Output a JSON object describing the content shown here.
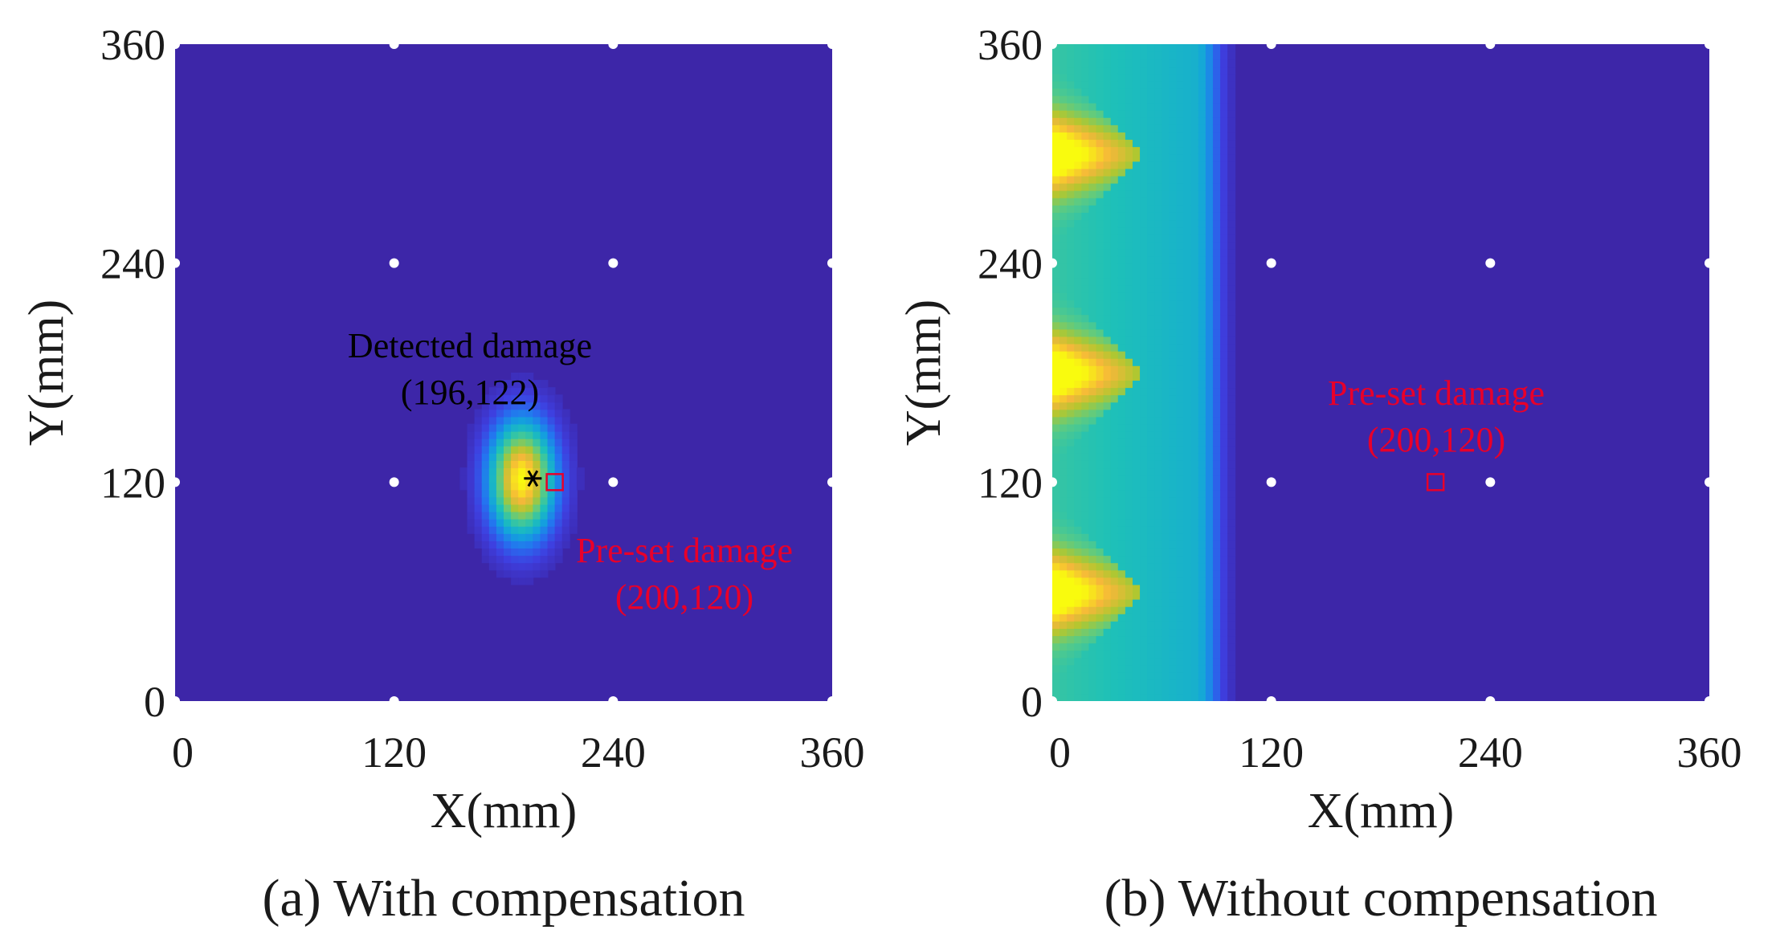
{
  "chart_data": [
    {
      "type": "heatmap",
      "caption": "(a) With compensation",
      "xlabel": "X(mm)",
      "ylabel": "Y(mm)",
      "xlim": [
        0,
        360
      ],
      "ylim": [
        0,
        360
      ],
      "xticks": [
        "0",
        "120",
        "240",
        "360"
      ],
      "yticks": [
        "0",
        "120",
        "240",
        "360"
      ],
      "sensors": [
        [
          0,
          0
        ],
        [
          120,
          0
        ],
        [
          240,
          0
        ],
        [
          360,
          0
        ],
        [
          0,
          120
        ],
        [
          120,
          120
        ],
        [
          240,
          120
        ],
        [
          360,
          120
        ],
        [
          0,
          240
        ],
        [
          120,
          240
        ],
        [
          240,
          240
        ],
        [
          360,
          240
        ],
        [
          0,
          360
        ],
        [
          120,
          360
        ],
        [
          240,
          360
        ],
        [
          360,
          360
        ]
      ],
      "hotspots": [
        {
          "x": 190,
          "y": 122,
          "sx": 18,
          "sy": 32,
          "amp": 1.0
        }
      ],
      "annotations": [
        {
          "kind": "detected",
          "lines": [
            "Detected damage",
            "(196,122)"
          ],
          "x": 196,
          "y": 122,
          "color": "#000000"
        },
        {
          "kind": "preset",
          "lines": [
            "Pre-set damage",
            "(200,120)"
          ],
          "x": 208,
          "y": 120,
          "color": "#e8002a"
        }
      ]
    },
    {
      "type": "heatmap",
      "caption": "(b) Without compensation",
      "xlabel": "X(mm)",
      "ylabel": "Y(mm)",
      "xlim": [
        0,
        360
      ],
      "ylim": [
        0,
        360
      ],
      "xticks": [
        "0",
        "120",
        "240",
        "360"
      ],
      "yticks": [
        "0",
        "120",
        "240",
        "360"
      ],
      "sensors": [
        [
          0,
          0
        ],
        [
          120,
          0
        ],
        [
          240,
          0
        ],
        [
          360,
          0
        ],
        [
          0,
          120
        ],
        [
          120,
          120
        ],
        [
          240,
          120
        ],
        [
          360,
          120
        ],
        [
          0,
          240
        ],
        [
          120,
          240
        ],
        [
          240,
          240
        ],
        [
          360,
          240
        ],
        [
          0,
          360
        ],
        [
          120,
          360
        ],
        [
          240,
          360
        ],
        [
          360,
          360
        ]
      ],
      "band": {
        "edge": 78,
        "peaks": [
          60,
          180,
          300
        ],
        "peak_reach": 48,
        "peak_sy": 22
      },
      "annotations": [
        {
          "kind": "preset",
          "lines": [
            "Pre-set damage",
            "(200,120)"
          ],
          "x": 210,
          "y": 120,
          "color": "#e8002a"
        }
      ]
    }
  ],
  "colors": {
    "colormap": [
      "#3d26a8",
      "#3e3fe0",
      "#2473f0",
      "#13a3dc",
      "#1ec1b8",
      "#5dcb82",
      "#b2c72f",
      "#f6b73a",
      "#f9fb0e"
    ],
    "sensor": "#ffffff",
    "preset": "#e8002a",
    "detected": "#000000"
  }
}
